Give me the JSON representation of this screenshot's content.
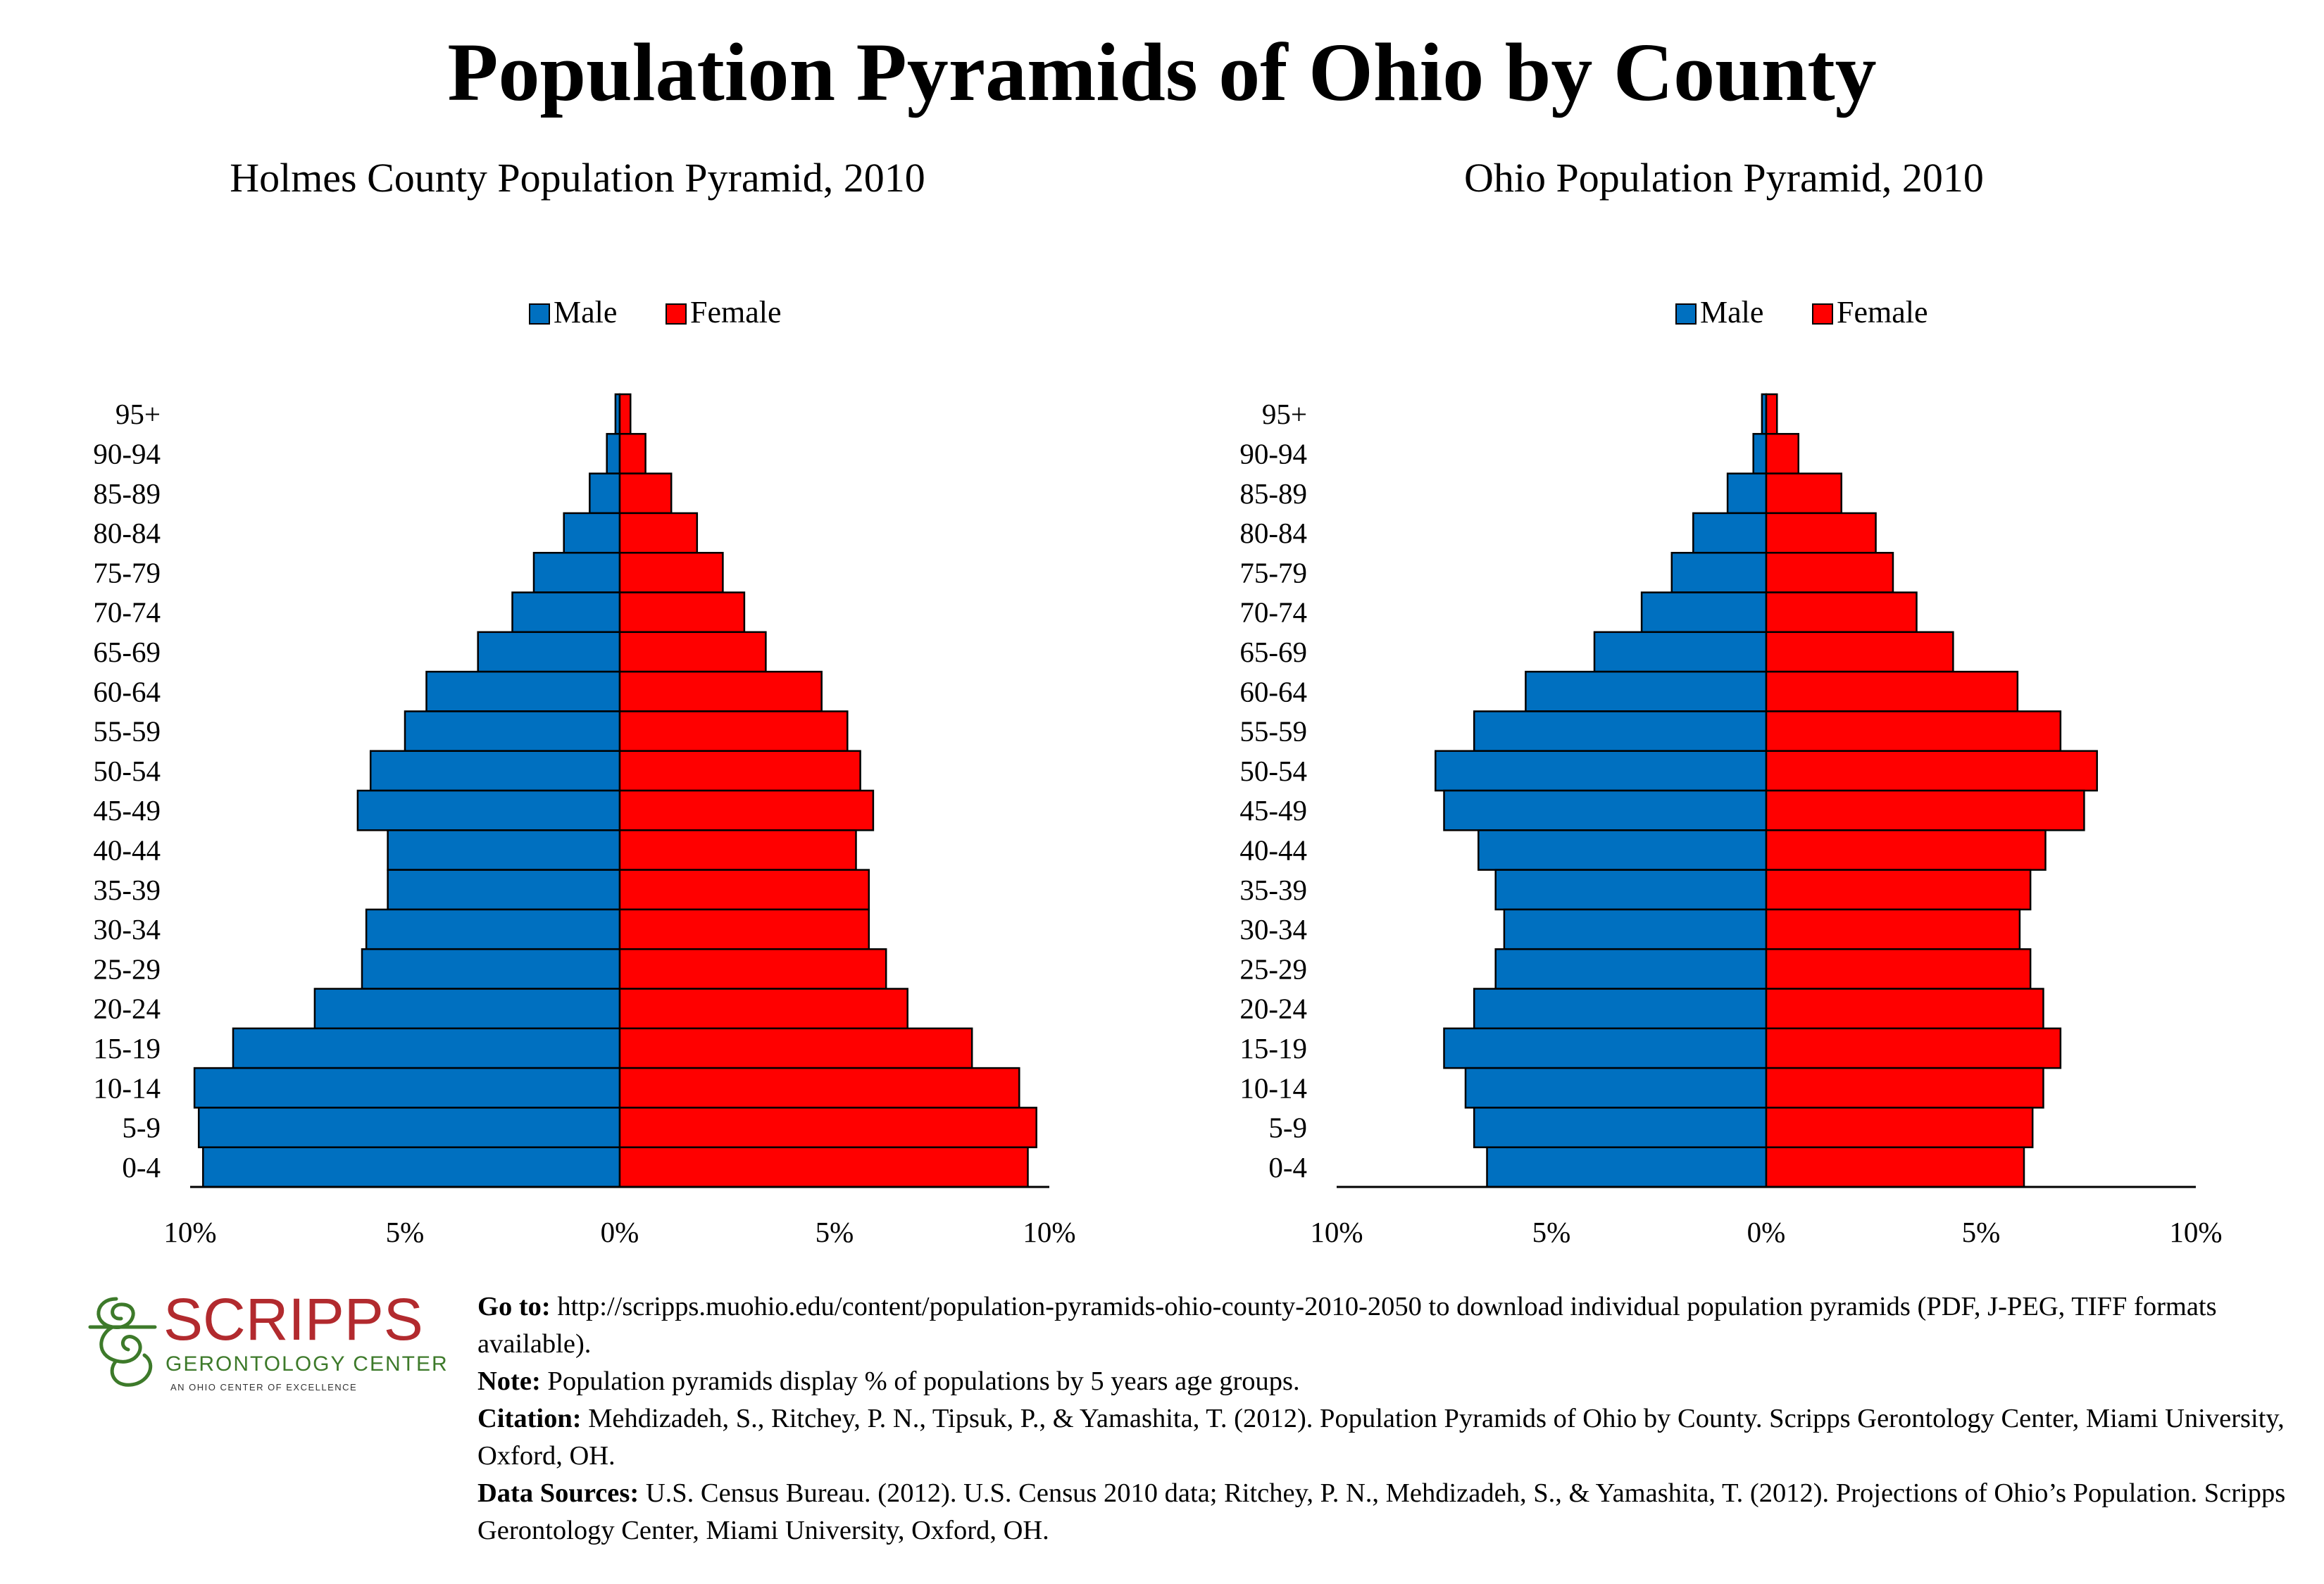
{
  "title": "Population Pyramids of Ohio by County",
  "legend": {
    "male": "Male",
    "female": "Female"
  },
  "colors": {
    "male": "#0070c0",
    "female": "#ff0000",
    "axis": "#000000"
  },
  "x_tick_labels": [
    "10%",
    "5%",
    "0%",
    "5%",
    "10%"
  ],
  "chart_data": [
    {
      "type": "bar",
      "title": "Holmes County Population Pyramid, 2010",
      "categories": [
        "95+",
        "90-94",
        "85-89",
        "80-84",
        "75-79",
        "70-74",
        "65-69",
        "60-64",
        "55-59",
        "50-54",
        "45-49",
        "40-44",
        "35-39",
        "30-34",
        "25-29",
        "20-24",
        "15-19",
        "10-14",
        "5-9",
        "0-4"
      ],
      "series": [
        {
          "name": "Male",
          "values": [
            0.1,
            0.3,
            0.7,
            1.3,
            2.0,
            2.5,
            3.3,
            4.5,
            5.0,
            5.8,
            6.1,
            5.4,
            5.4,
            5.9,
            6.0,
            7.1,
            9.0,
            9.9,
            9.8,
            9.7
          ]
        },
        {
          "name": "Female",
          "values": [
            0.25,
            0.6,
            1.2,
            1.8,
            2.4,
            2.9,
            3.4,
            4.7,
            5.3,
            5.6,
            5.9,
            5.5,
            5.8,
            5.8,
            6.2,
            6.7,
            8.2,
            9.3,
            9.7,
            9.5
          ]
        }
      ],
      "xlim": [
        -10,
        10
      ],
      "xlabel": "",
      "ylabel": "",
      "legend_position": "top-center",
      "grid": false
    },
    {
      "type": "bar",
      "title": "Ohio Population Pyramid, 2010",
      "categories": [
        "95+",
        "90-94",
        "85-89",
        "80-84",
        "75-79",
        "70-74",
        "65-69",
        "60-64",
        "55-59",
        "50-54",
        "45-49",
        "40-44",
        "35-39",
        "30-34",
        "25-29",
        "20-24",
        "15-19",
        "10-14",
        "5-9",
        "0-4"
      ],
      "series": [
        {
          "name": "Male",
          "values": [
            0.1,
            0.3,
            0.9,
            1.7,
            2.2,
            2.9,
            4.0,
            5.6,
            6.8,
            7.7,
            7.5,
            6.7,
            6.3,
            6.1,
            6.3,
            6.8,
            7.5,
            7.0,
            6.8,
            6.5
          ]
        },
        {
          "name": "Female",
          "values": [
            0.25,
            0.75,
            1.75,
            2.55,
            2.95,
            3.5,
            4.35,
            5.85,
            6.85,
            7.7,
            7.4,
            6.5,
            6.15,
            5.9,
            6.15,
            6.45,
            6.85,
            6.45,
            6.2,
            6.0
          ]
        }
      ],
      "xlim": [
        -10,
        10
      ],
      "xlabel": "",
      "ylabel": "",
      "legend_position": "top-center",
      "grid": false
    }
  ],
  "footer": {
    "logo_name": "SCRIPPS",
    "logo_sub": "GERONTOLOGY CENTER",
    "logo_tag": "AN OHIO CENTER OF EXCELLENCE",
    "goto_label": "Go to:",
    "goto_text": " http://scripps.muohio.edu/content/population-pyramids-ohio-county-2010-2050 to download individual population pyramids (PDF, J-PEG, TIFF formats available).",
    "note_label": "Note:",
    "note_text": " Population pyramids display % of populations by 5 years age groups.",
    "citation_label": "Citation:",
    "citation_text": " Mehdizadeh, S., Ritchey, P. N., Tipsuk, P., & Yamashita, T. (2012). Population Pyramids of Ohio by County. Scripps Gerontology Center, Miami University, Oxford, OH.",
    "sources_label": "Data Sources:",
    "sources_text": " U.S. Census Bureau. (2012). U.S. Census 2010 data; Ritchey, P. N., Mehdizadeh, S., & Yamashita, T. (2012). Projections of Ohio’s Population. Scripps Gerontology Center, Miami University, Oxford, OH."
  }
}
